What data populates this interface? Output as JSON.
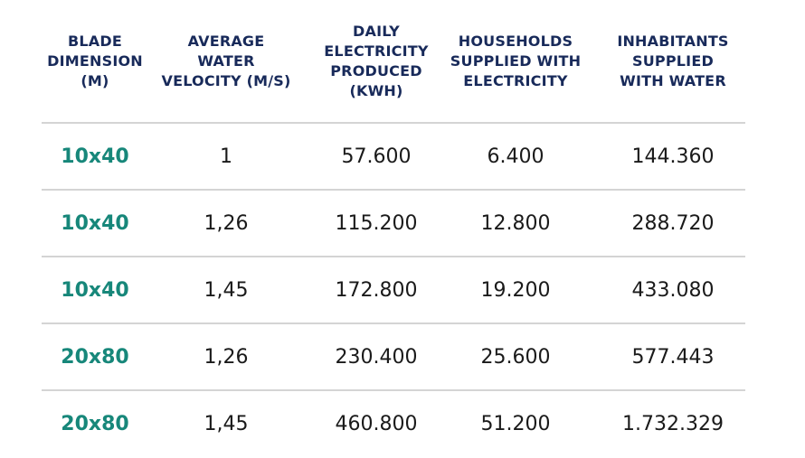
{
  "table": {
    "headers": [
      "BLADE\nDIMENSION\n(M)",
      "AVERAGE\nWATER\nVELOCITY (M/S)",
      "DAILY\nELECTRICITY\nPRODUCED\n(KWH)",
      "HOUSEHOLDS\nSUPPLIED WITH\nELECTRICITY",
      "INHABITANTS\nSUPPLIED\nWITH WATER"
    ],
    "rows": [
      [
        "10x40",
        "1",
        "57.600",
        "6.400",
        "144.360"
      ],
      [
        "10x40",
        "1,26",
        "115.200",
        "12.800",
        "288.720"
      ],
      [
        "10x40",
        "1,45",
        "172.800",
        "19.200",
        "433.080"
      ],
      [
        "20x80",
        "1,26",
        "230.400",
        "25.600",
        "577.443"
      ],
      [
        "20x80",
        "1,45",
        "460.800",
        "51.200",
        "1.732.329"
      ]
    ]
  },
  "colors": {
    "header_text": "#182a5a",
    "first_column_text": "#17877a",
    "body_text": "#1a1a1a",
    "divider": "#d4d4d4"
  }
}
